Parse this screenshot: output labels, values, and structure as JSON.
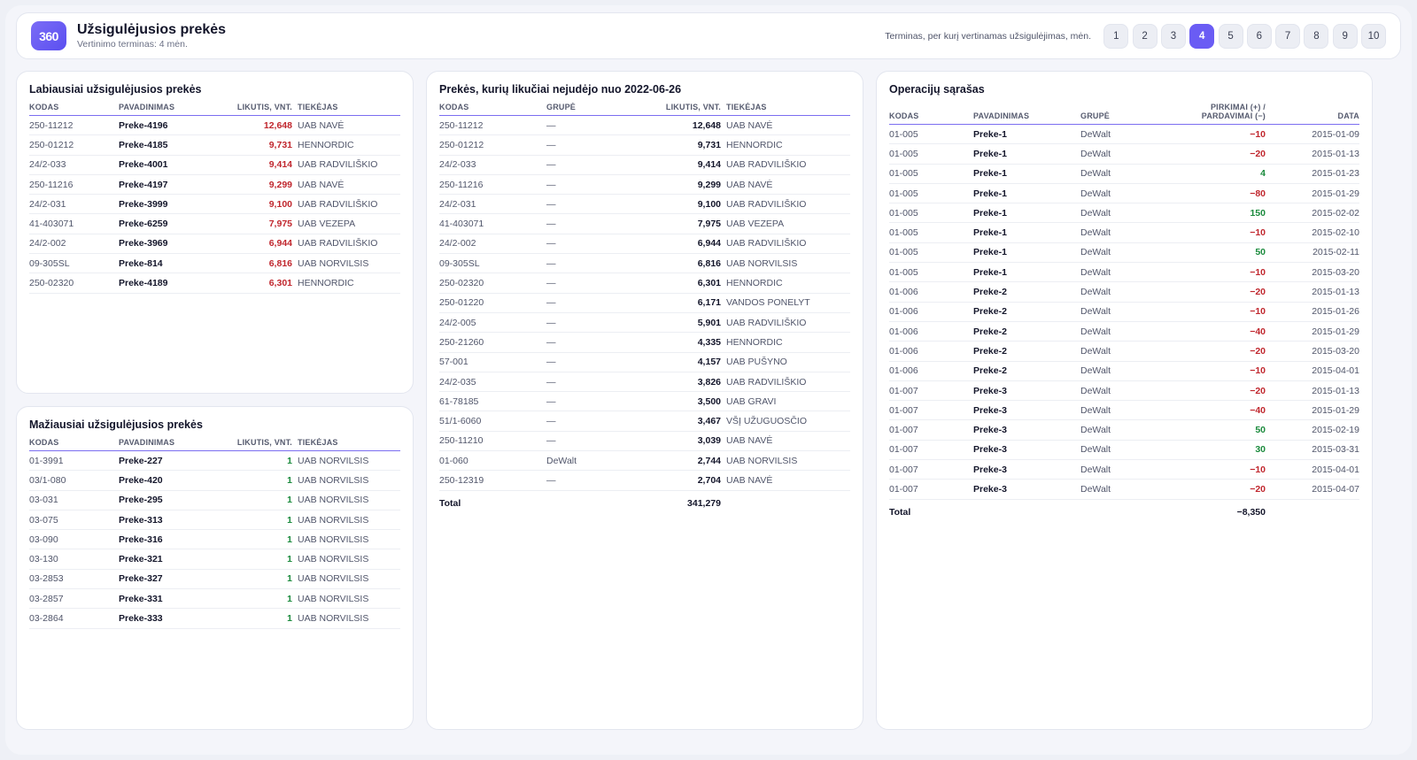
{
  "header": {
    "logo": "360",
    "title": "Užsigulėjusios prekės",
    "subtitle": "Vertinimo terminas: 4 mėn.",
    "term_label": "Terminas, per kurį vertinamas užsigulėjimas, mėn.",
    "term_options": [
      "1",
      "2",
      "3",
      "4",
      "5",
      "6",
      "7",
      "8",
      "9",
      "10"
    ],
    "active_term": "4"
  },
  "most_stale": {
    "title": "Labiausiai užsigulėjusios prekės",
    "columns": [
      "KODAS",
      "PAVADINIMAS",
      "LIKUTIS, VNT.",
      "TIEKĖJAS"
    ],
    "rows": [
      [
        "250-11212",
        "Preke-4196",
        "12,648",
        "UAB NAVĖ"
      ],
      [
        "250-01212",
        "Preke-4185",
        "9,731",
        "HENNORDIC"
      ],
      [
        "24/2-033",
        "Preke-4001",
        "9,414",
        "UAB RADVILIŠKIO"
      ],
      [
        "250-11216",
        "Preke-4197",
        "9,299",
        "UAB NAVĖ"
      ],
      [
        "24/2-031",
        "Preke-3999",
        "9,100",
        "UAB RADVILIŠKIO"
      ],
      [
        "41-403071",
        "Preke-6259",
        "7,975",
        "UAB VEZEPA"
      ],
      [
        "24/2-002",
        "Preke-3969",
        "6,944",
        "UAB RADVILIŠKIO"
      ],
      [
        "09-305SL",
        "Preke-814",
        "6,816",
        "UAB NORVILSIS"
      ],
      [
        "250-02320",
        "Preke-4189",
        "6,301",
        "HENNORDIC"
      ]
    ]
  },
  "least_stale": {
    "title": "Mažiausiai užsigulėjusios prekės",
    "columns": [
      "KODAS",
      "PAVADINIMAS",
      "LIKUTIS, VNT.",
      "TIEKĖJAS"
    ],
    "rows": [
      [
        "01-3991",
        "Preke-227",
        "1",
        "UAB NORVILSIS"
      ],
      [
        "03/1-080",
        "Preke-420",
        "1",
        "UAB NORVILSIS"
      ],
      [
        "03-031",
        "Preke-295",
        "1",
        "UAB NORVILSIS"
      ],
      [
        "03-075",
        "Preke-313",
        "1",
        "UAB NORVILSIS"
      ],
      [
        "03-090",
        "Preke-316",
        "1",
        "UAB NORVILSIS"
      ],
      [
        "03-130",
        "Preke-321",
        "1",
        "UAB NORVILSIS"
      ],
      [
        "03-2853",
        "Preke-327",
        "1",
        "UAB NORVILSIS"
      ],
      [
        "03-2857",
        "Preke-331",
        "1",
        "UAB NORVILSIS"
      ],
      [
        "03-2864",
        "Preke-333",
        "1",
        "UAB NORVILSIS"
      ]
    ]
  },
  "unmoved": {
    "title": "Prekės, kurių likučiai nejudėjo nuo 2022-06-26",
    "columns": [
      "KODAS",
      "GRUPĖ",
      "LIKUTIS, VNT.",
      "TIEKĖJAS"
    ],
    "rows": [
      [
        "250-11212",
        "—",
        "12,648",
        "UAB NAVĖ"
      ],
      [
        "250-01212",
        "—",
        "9,731",
        "HENNORDIC"
      ],
      [
        "24/2-033",
        "—",
        "9,414",
        "UAB RADVILIŠKIO"
      ],
      [
        "250-11216",
        "—",
        "9,299",
        "UAB NAVĖ"
      ],
      [
        "24/2-031",
        "—",
        "9,100",
        "UAB RADVILIŠKIO"
      ],
      [
        "41-403071",
        "—",
        "7,975",
        "UAB VEZEPA"
      ],
      [
        "24/2-002",
        "—",
        "6,944",
        "UAB RADVILIŠKIO"
      ],
      [
        "09-305SL",
        "—",
        "6,816",
        "UAB NORVILSIS"
      ],
      [
        "250-02320",
        "—",
        "6,301",
        "HENNORDIC"
      ],
      [
        "250-01220",
        "—",
        "6,171",
        "VANDOS PONELYT"
      ],
      [
        "24/2-005",
        "—",
        "5,901",
        "UAB RADVILIŠKIO"
      ],
      [
        "250-21260",
        "—",
        "4,335",
        "HENNORDIC"
      ],
      [
        "57-001",
        "—",
        "4,157",
        "UAB PUŠYNO"
      ],
      [
        "24/2-035",
        "—",
        "3,826",
        "UAB RADVILIŠKIO"
      ],
      [
        "61-78185",
        "—",
        "3,500",
        "UAB GRAVI"
      ],
      [
        "51/1-6060",
        "—",
        "3,467",
        "VŠĮ UŽUGUOSČIO"
      ],
      [
        "250-11210",
        "—",
        "3,039",
        "UAB NAVĖ"
      ],
      [
        "01-060",
        "DeWalt",
        "2,744",
        "UAB NORVILSIS"
      ],
      [
        "250-12319",
        "—",
        "2,704",
        "UAB NAVĖ"
      ]
    ],
    "total_label": "Total",
    "total_value": "341,279"
  },
  "operations": {
    "title": "Operacijų sąrašas",
    "columns": [
      "KODAS",
      "PAVADINIMAS",
      "GRUPĖ",
      "PIRKIMAI (+) / PARDAVIMAI (−)",
      "DATA"
    ],
    "rows": [
      [
        "01-005",
        "Preke-1",
        "DeWalt",
        "−10",
        "2015-01-09"
      ],
      [
        "01-005",
        "Preke-1",
        "DeWalt",
        "−20",
        "2015-01-13"
      ],
      [
        "01-005",
        "Preke-1",
        "DeWalt",
        "4",
        "2015-01-23"
      ],
      [
        "01-005",
        "Preke-1",
        "DeWalt",
        "−80",
        "2015-01-29"
      ],
      [
        "01-005",
        "Preke-1",
        "DeWalt",
        "150",
        "2015-02-02"
      ],
      [
        "01-005",
        "Preke-1",
        "DeWalt",
        "−10",
        "2015-02-10"
      ],
      [
        "01-005",
        "Preke-1",
        "DeWalt",
        "50",
        "2015-02-11"
      ],
      [
        "01-005",
        "Preke-1",
        "DeWalt",
        "−10",
        "2015-03-20"
      ],
      [
        "01-006",
        "Preke-2",
        "DeWalt",
        "−20",
        "2015-01-13"
      ],
      [
        "01-006",
        "Preke-2",
        "DeWalt",
        "−10",
        "2015-01-26"
      ],
      [
        "01-006",
        "Preke-2",
        "DeWalt",
        "−40",
        "2015-01-29"
      ],
      [
        "01-006",
        "Preke-2",
        "DeWalt",
        "−20",
        "2015-03-20"
      ],
      [
        "01-006",
        "Preke-2",
        "DeWalt",
        "−10",
        "2015-04-01"
      ],
      [
        "01-007",
        "Preke-3",
        "DeWalt",
        "−20",
        "2015-01-13"
      ],
      [
        "01-007",
        "Preke-3",
        "DeWalt",
        "−40",
        "2015-01-29"
      ],
      [
        "01-007",
        "Preke-3",
        "DeWalt",
        "50",
        "2015-02-19"
      ],
      [
        "01-007",
        "Preke-3",
        "DeWalt",
        "30",
        "2015-03-31"
      ],
      [
        "01-007",
        "Preke-3",
        "DeWalt",
        "−10",
        "2015-04-01"
      ],
      [
        "01-007",
        "Preke-3",
        "DeWalt",
        "−20",
        "2015-04-07"
      ]
    ],
    "total_label": "Total",
    "total_value": "−8,350"
  },
  "colors": {
    "accent": "#6a5cf4",
    "negative": "#c0262d",
    "positive": "#1a8a3c"
  }
}
